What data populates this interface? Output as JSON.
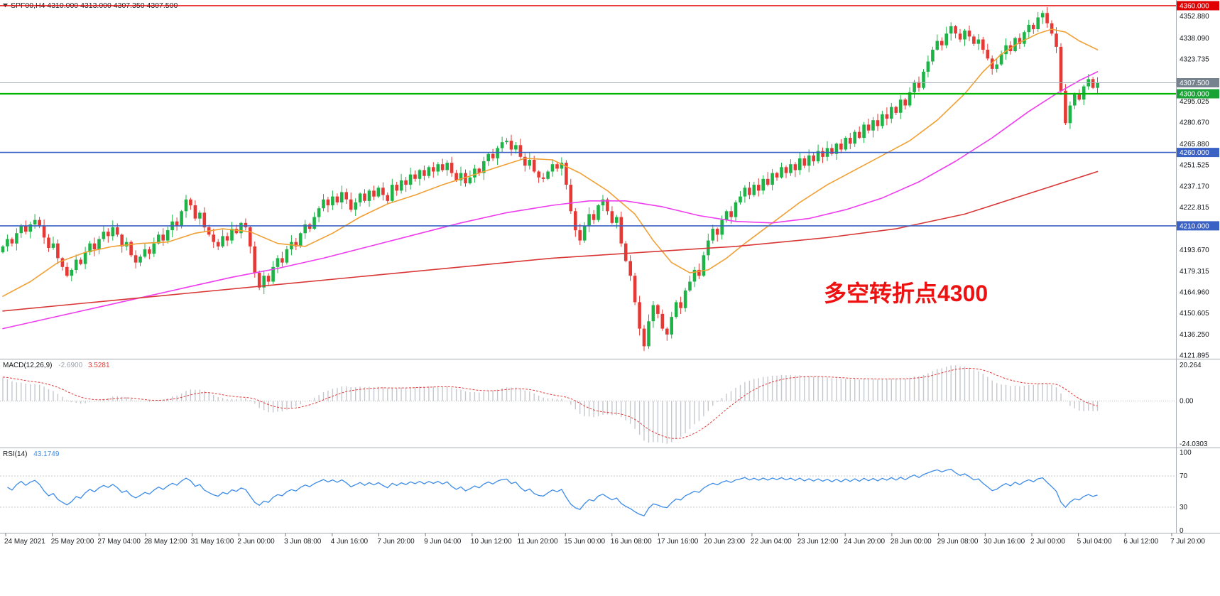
{
  "window": {
    "symbol_info": "SPF00,H4  4310.000 4313.000 4307.350 4307.500",
    "symbol": "SPF00",
    "timeframe": "H4",
    "bar_ohlc": {
      "open": "4310.000",
      "high": "4313.000",
      "low": "4307.350",
      "close": "4307.500"
    }
  },
  "annotation": {
    "text": "多空转折点4300",
    "color": "#ee1111"
  },
  "colors": {
    "up": "#1eb347",
    "down": "#e53935",
    "ma_fast": "#f0a035",
    "ma_mid": "#ee3cee",
    "ma_slow": "#d93636",
    "macd_hist": "#c4c8ce",
    "macd_signal": "#e03c3c",
    "rsi_line": "#3c8ce8",
    "line_red": "#e00000",
    "line_green": "#00b400",
    "line_blue": "#3a62c4",
    "line_price": "#a8b0b8",
    "badge_red": "#e00000",
    "badge_green": "#17a233",
    "badge_blue": "#3a62c4",
    "badge_price": "#76828e"
  },
  "hlines": [
    {
      "price": 4360.0,
      "color_key": "line_red",
      "width": 1.4
    },
    {
      "price": 4307.5,
      "color_key": "line_price",
      "width": 1
    },
    {
      "price": 4300.0,
      "color_key": "line_green",
      "width": 2.2
    },
    {
      "price": 4260.0,
      "color_key": "line_blue",
      "width": 1.6
    },
    {
      "price": 4210.0,
      "color_key": "line_blue",
      "width": 1.6
    }
  ],
  "price_axis": {
    "ticks": [
      "4352.880",
      "4338.090",
      "4323.735",
      "4295.025",
      "4280.670",
      "4265.880",
      "4251.525",
      "4237.170",
      "4222.815",
      "4193.670",
      "4179.315",
      "4164.960",
      "4150.605",
      "4136.250",
      "4121.895"
    ],
    "badges": [
      {
        "text": "4360.000",
        "price": 4360.0,
        "color_key": "badge_red"
      },
      {
        "text": "4307.500",
        "price": 4307.5,
        "color_key": "badge_price"
      },
      {
        "text": "4300.000",
        "price": 4300.0,
        "color_key": "badge_green"
      },
      {
        "text": "4260.000",
        "price": 4260.0,
        "color_key": "badge_blue"
      },
      {
        "text": "4210.000",
        "price": 4210.0,
        "color_key": "badge_blue"
      }
    ]
  },
  "chart_data": {
    "type": "candlestick",
    "symbol": "SPF00",
    "timeframe": "H4",
    "ylim": [
      4121.895,
      4360.0
    ],
    "grid": false,
    "first_open": 4192,
    "closes": [
      4196,
      4201,
      4198,
      4205,
      4210,
      4206,
      4211,
      4214,
      4210,
      4202,
      4195,
      4198,
      4188,
      4182,
      4176,
      4180,
      4187,
      4184,
      4192,
      4198,
      4194,
      4201,
      4206,
      4203,
      4209,
      4204,
      4196,
      4199,
      4190,
      4185,
      4189,
      4194,
      4191,
      4198,
      4204,
      4200,
      4207,
      4213,
      4210,
      4220,
      4228,
      4224,
      4215,
      4219,
      4209,
      4204,
      4199,
      4196,
      4203,
      4200,
      4208,
      4205,
      4212,
      4209,
      4196,
      4178,
      4168,
      4176,
      4172,
      4182,
      4188,
      4185,
      4194,
      4199,
      4196,
      4205,
      4211,
      4208,
      4216,
      4222,
      4228,
      4224,
      4230,
      4226,
      4233,
      4228,
      4221,
      4226,
      4232,
      4227,
      4234,
      4230,
      4236,
      4231,
      4227,
      4238,
      4234,
      4241,
      4238,
      4245,
      4242,
      4248,
      4244,
      4250,
      4247,
      4252,
      4248,
      4253,
      4246,
      4241,
      4246,
      4239,
      4243,
      4249,
      4246,
      4254,
      4259,
      4256,
      4263,
      4267,
      4268,
      4262,
      4265,
      4257,
      4251,
      4255,
      4247,
      4243,
      4242,
      4247,
      4252,
      4249,
      4253,
      4238,
      4220,
      4207,
      4200,
      4210,
      4218,
      4214,
      4224,
      4228,
      4220,
      4212,
      4216,
      4198,
      4186,
      4176,
      4158,
      4140,
      4128,
      4145,
      4156,
      4150,
      4140,
      4136,
      4148,
      4158,
      4154,
      4166,
      4172,
      4180,
      4176,
      4190,
      4200,
      4208,
      4204,
      4214,
      4220,
      4216,
      4226,
      4230,
      4236,
      4231,
      4238,
      4234,
      4242,
      4238,
      4246,
      4243,
      4250,
      4246,
      4252,
      4248,
      4256,
      4251,
      4258,
      4254,
      4261,
      4257,
      4263,
      4259,
      4266,
      4262,
      4270,
      4266,
      4274,
      4270,
      4279,
      4275,
      4282,
      4278,
      4286,
      4283,
      4291,
      4287,
      4296,
      4292,
      4301,
      4308,
      4304,
      4315,
      4322,
      4330,
      4336,
      4333,
      4341,
      4346,
      4341,
      4337,
      4343,
      4339,
      4334,
      4337,
      4330,
      4324,
      4317,
      4320,
      4327,
      4333,
      4329,
      4338,
      4334,
      4342,
      4347,
      4344,
      4352,
      4355,
      4348,
      4341,
      4332,
      4302,
      4280,
      4292,
      4300,
      4296,
      4305,
      4310,
      4304,
      4307.5
    ],
    "moving_averages": [
      {
        "name": "fast",
        "color_key": "ma_fast",
        "points": [
          [
            0,
            4162
          ],
          [
            6,
            4172
          ],
          [
            12,
            4185
          ],
          [
            18,
            4192
          ],
          [
            24,
            4196
          ],
          [
            30,
            4198
          ],
          [
            36,
            4199
          ],
          [
            42,
            4205
          ],
          [
            48,
            4208
          ],
          [
            54,
            4206
          ],
          [
            60,
            4198
          ],
          [
            66,
            4196
          ],
          [
            72,
            4205
          ],
          [
            78,
            4216
          ],
          [
            84,
            4225
          ],
          [
            90,
            4231
          ],
          [
            96,
            4238
          ],
          [
            102,
            4244
          ],
          [
            108,
            4250
          ],
          [
            114,
            4256
          ],
          [
            120,
            4255
          ],
          [
            126,
            4246
          ],
          [
            132,
            4234
          ],
          [
            138,
            4218
          ],
          [
            142,
            4200
          ],
          [
            146,
            4185
          ],
          [
            150,
            4178
          ],
          [
            154,
            4180
          ],
          [
            158,
            4188
          ],
          [
            162,
            4198
          ],
          [
            168,
            4212
          ],
          [
            174,
            4226
          ],
          [
            180,
            4238
          ],
          [
            186,
            4248
          ],
          [
            192,
            4258
          ],
          [
            198,
            4268
          ],
          [
            204,
            4282
          ],
          [
            210,
            4300
          ],
          [
            214,
            4315
          ],
          [
            218,
            4327
          ],
          [
            222,
            4335
          ],
          [
            226,
            4341
          ],
          [
            229,
            4344
          ],
          [
            232,
            4342
          ],
          [
            235,
            4336
          ],
          [
            239,
            4330
          ]
        ]
      },
      {
        "name": "mid",
        "color_key": "ma_mid",
        "points": [
          [
            0,
            4140
          ],
          [
            10,
            4147
          ],
          [
            20,
            4154
          ],
          [
            30,
            4161
          ],
          [
            40,
            4168
          ],
          [
            50,
            4175
          ],
          [
            60,
            4181
          ],
          [
            70,
            4188
          ],
          [
            80,
            4196
          ],
          [
            90,
            4204
          ],
          [
            100,
            4212
          ],
          [
            110,
            4219
          ],
          [
            120,
            4224
          ],
          [
            128,
            4227
          ],
          [
            136,
            4227
          ],
          [
            144,
            4223
          ],
          [
            152,
            4217
          ],
          [
            160,
            4213
          ],
          [
            168,
            4212
          ],
          [
            176,
            4215
          ],
          [
            184,
            4221
          ],
          [
            192,
            4229
          ],
          [
            200,
            4240
          ],
          [
            208,
            4254
          ],
          [
            216,
            4270
          ],
          [
            224,
            4288
          ],
          [
            230,
            4300
          ],
          [
            235,
            4309
          ],
          [
            239,
            4315
          ]
        ]
      },
      {
        "name": "slow",
        "color_key": "ma_slow",
        "points": [
          [
            0,
            4152
          ],
          [
            20,
            4158
          ],
          [
            40,
            4164
          ],
          [
            60,
            4170
          ],
          [
            80,
            4176
          ],
          [
            100,
            4182
          ],
          [
            120,
            4188
          ],
          [
            140,
            4192
          ],
          [
            160,
            4196
          ],
          [
            180,
            4202
          ],
          [
            195,
            4208
          ],
          [
            210,
            4218
          ],
          [
            220,
            4228
          ],
          [
            230,
            4238
          ],
          [
            239,
            4247
          ]
        ]
      }
    ],
    "indicators": {
      "macd": {
        "label": "MACD(12,26,9)",
        "main_value": "-2.6900",
        "signal_value": "3.5281",
        "fast": 12,
        "slow": 26,
        "signal": 9,
        "axis_max": "20.264",
        "axis_zero": "0.00",
        "axis_min": "-24.0303"
      },
      "rsi": {
        "label": "RSI(14)",
        "value": "43.1749",
        "period": 14,
        "levels": [
          70,
          30
        ],
        "axis": [
          "100",
          "70",
          "30",
          "0"
        ]
      }
    },
    "time_labels": [
      "24 May 2021",
      "25 May 20:00",
      "27 May 04:00",
      "28 May 12:00",
      "31 May 16:00",
      "2 Jun 00:00",
      "3 Jun 08:00",
      "4 Jun 16:00",
      "7 Jun 20:00",
      "9 Jun 04:00",
      "10 Jun 12:00",
      "11 Jun 20:00",
      "15 Jun 00:00",
      "16 Jun 08:00",
      "17 Jun 16:00",
      "20 Jun 23:00",
      "22 Jun 04:00",
      "23 Jun 12:00",
      "24 Jun 20:00",
      "28 Jun 00:00",
      "29 Jun 08:00",
      "30 Jun 16:00",
      "2 Jul 00:00",
      "5 Jul 04:00",
      "6 Jul 12:00",
      "7 Jul 20:00"
    ]
  }
}
